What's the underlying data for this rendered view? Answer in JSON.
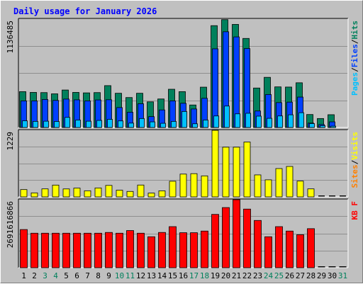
{
  "chart_data": {
    "type": "bar",
    "title": "Daily usage for January 2026",
    "categories": [
      "1",
      "2",
      "3",
      "4",
      "5",
      "6",
      "7",
      "8",
      "9",
      "10",
      "11",
      "12",
      "13",
      "14",
      "15",
      "16",
      "17",
      "18",
      "19",
      "20",
      "21",
      "22",
      "23",
      "24",
      "25",
      "26",
      "27",
      "28",
      "29",
      "30",
      "31"
    ],
    "weekend_days": [
      3,
      4,
      10,
      11,
      17,
      18,
      24,
      25,
      31
    ],
    "colors": {
      "title": "#0000ff",
      "hits": "#00805c",
      "files": "#0040ff",
      "pages": "#00c0ff",
      "visits": "#ffff00",
      "sites": "#ff8000",
      "kbytes": "#ff0000",
      "weekday_label": "#000000",
      "weekend_label": "#00805c",
      "plot_bg": "#c0c0c0"
    },
    "panels": [
      {
        "id": "hits-files-pages",
        "max_label": "1136485",
        "ylim": [
          0,
          1136485
        ],
        "legend": [
          {
            "text": "Pages",
            "color": "#00c0ff"
          },
          {
            "text": "/",
            "color": "#000000"
          },
          {
            "text": "Files",
            "color": "#0040ff"
          },
          {
            "text": "/",
            "color": "#000000"
          },
          {
            "text": "Hits",
            "color": "#00805c"
          }
        ],
        "series": [
          {
            "name": "Hits",
            "color": "#00805c",
            "values": [
              376000,
              368000,
              366000,
              353000,
              393000,
              368000,
              363000,
              366000,
              439000,
              359000,
              314000,
              359000,
              269000,
              299000,
              401000,
              376000,
              236000,
              423000,
              1068000,
              1131000,
              1081000,
              934000,
              414000,
              526000,
              426000,
              424000,
              469000,
              136000,
              94000,
              134000,
              0
            ]
          },
          {
            "name": "Files",
            "color": "#0040ff",
            "values": [
              279000,
              279000,
              294000,
              284000,
              298000,
              290000,
              279000,
              289000,
              291000,
              209000,
              160000,
              249000,
              114000,
              184000,
              279000,
              254000,
              194000,
              306000,
              825000,
              1004000,
              950000,
              828000,
              173000,
              346000,
              261000,
              266000,
              319000,
              46000,
              31000,
              59000,
              0
            ]
          },
          {
            "name": "Pages",
            "color": "#00c0ff",
            "values": [
              70000,
              64000,
              66000,
              63000,
              106000,
              78000,
              66000,
              74000,
              86000,
              69000,
              46000,
              94000,
              59000,
              44000,
              64000,
              168000,
              39000,
              78000,
              121000,
              225000,
              143000,
              149000,
              119000,
              96000,
              121000,
              133000,
              155000,
              41000,
              19000,
              14000,
              0
            ]
          }
        ]
      },
      {
        "id": "visits-sites",
        "max_label": "1229",
        "ylim": [
          0,
          1229
        ],
        "legend": [
          {
            "text": "Sites",
            "color": "#ff8000"
          },
          {
            "text": "/",
            "color": "#000000"
          },
          {
            "text": "Visits",
            "color": "#ffff00"
          }
        ],
        "series": [
          {
            "name": "Visits",
            "color": "#ffff00",
            "values": [
              135,
              74,
              148,
              218,
              147,
              162,
              113,
              165,
              212,
              124,
              101,
              219,
              70,
              112,
              289,
              421,
              429,
              388,
              1229,
              918,
              918,
              1013,
              406,
              315,
              523,
              562,
              292,
              148,
              0,
              0,
              0
            ]
          },
          {
            "name": "Sites",
            "color": "#ff8000",
            "values": [
              0,
              0,
              0,
              0,
              0,
              0,
              0,
              0,
              0,
              0,
              0,
              0,
              0,
              0,
              0,
              0,
              0,
              0,
              0,
              0,
              0,
              0,
              0,
              0,
              0,
              0,
              0,
              0,
              0,
              0,
              0
            ]
          }
        ]
      },
      {
        "id": "kbytes",
        "max_label": "2691616866",
        "ylim": [
          0,
          2691616866
        ],
        "legend": [
          {
            "text": "KB F",
            "color": "#ff0000"
          }
        ],
        "series": [
          {
            "name": "KB F",
            "color": "#ff0000",
            "values": [
              1511000000,
              1366000000,
              1366000000,
              1366000000,
              1366000000,
              1366000000,
              1366000000,
              1366000000,
              1396000000,
              1366000000,
              1471000000,
              1366000000,
              1226000000,
              1396000000,
              1626000000,
              1386000000,
              1386000000,
              1451000000,
              2111000000,
              2381000000,
              2691616866,
              2321000000,
              1871000000,
              1226000000,
              1626000000,
              1451000000,
              1306000000,
              1546000000,
              0,
              0,
              0
            ]
          }
        ]
      }
    ]
  }
}
